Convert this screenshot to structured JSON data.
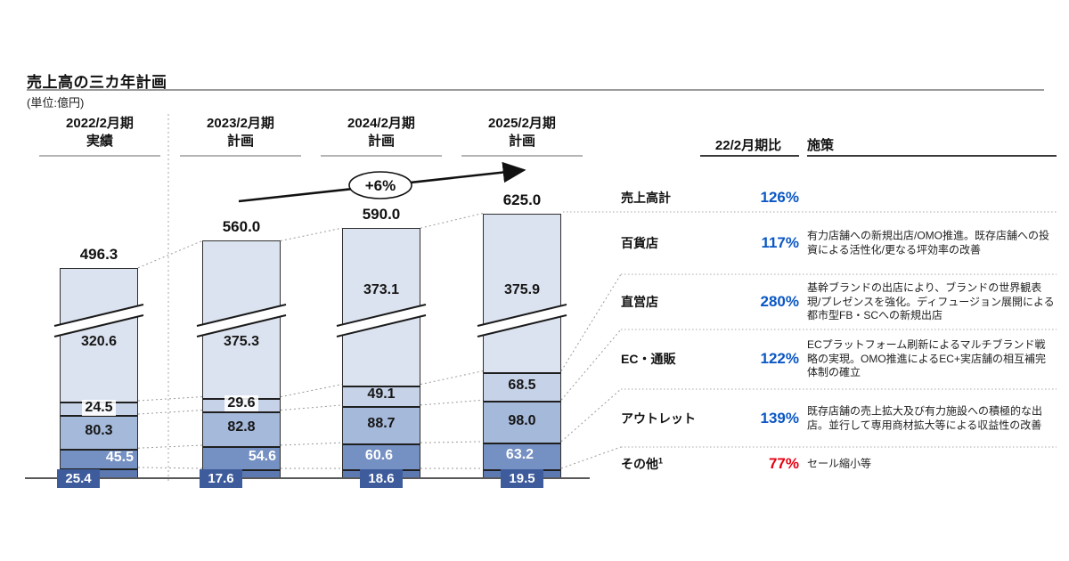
{
  "page": {
    "title": "売上高の三カ年計画",
    "unit_note": "(単位:億円)"
  },
  "chart_data": {
    "type": "bar",
    "stacked": true,
    "unit": "億円",
    "title": "売上高の三カ年計画",
    "categories": [
      "2022/2月期 実績",
      "2023/2月期 計画",
      "2024/2月期 計画",
      "2025/2月期 計画"
    ],
    "category_headers": [
      {
        "line1": "2022/2月期",
        "line2": "実績"
      },
      {
        "line1": "2023/2月期",
        "line2": "計画"
      },
      {
        "line1": "2024/2月期",
        "line2": "計画"
      },
      {
        "line1": "2025/2月期",
        "line2": "計画"
      }
    ],
    "totals": [
      496.3,
      560.0,
      590.0,
      625.0
    ],
    "series": [
      {
        "name": "百貨店",
        "color": "#dce3f0",
        "values": [
          320.6,
          375.3,
          373.1,
          375.9
        ]
      },
      {
        "name": "直営店",
        "color": "#c6d2e8",
        "values": [
          24.5,
          29.6,
          49.1,
          68.5
        ]
      },
      {
        "name": "EC・通販",
        "color": "#a5b9da",
        "values": [
          80.3,
          82.8,
          88.7,
          98.0
        ]
      },
      {
        "name": "アウトレット",
        "color": "#7590c2",
        "values": [
          45.5,
          54.6,
          60.6,
          63.2
        ]
      },
      {
        "name": "その他",
        "color": "#5c79b2",
        "values": [
          25.4,
          17.6,
          18.6,
          19.5
        ]
      }
    ],
    "growth_annotation": "+6%",
    "axis_break": true,
    "legend_position": "none",
    "xlabel": "",
    "ylabel": ""
  },
  "table": {
    "ratio_header": "22/2月期比",
    "measures_header": "施策",
    "rows": [
      {
        "label": "売上高計",
        "sup": "",
        "ratio": "126%",
        "ratio_color": "#0b57c4",
        "measure": ""
      },
      {
        "label": "百貨店",
        "sup": "",
        "ratio": "117%",
        "ratio_color": "#0b57c4",
        "measure": "有力店舗への新規出店/OMO推進。既存店舗への投資による活性化/更なる坪効率の改善"
      },
      {
        "label": "直営店",
        "sup": "",
        "ratio": "280%",
        "ratio_color": "#0b57c4",
        "measure": "基幹ブランドの出店により、ブランドの世界観表現/プレゼンスを強化。ディフュージョン展開による都市型FB・SCへの新規出店"
      },
      {
        "label": "EC・通販",
        "sup": "",
        "ratio": "122%",
        "ratio_color": "#0b57c4",
        "measure": "ECプラットフォーム刷新によるマルチブランド戦略の実現。OMO推進によるEC+実店舗の相互補完体制の確立"
      },
      {
        "label": "アウトレット",
        "sup": "",
        "ratio": "139%",
        "ratio_color": "#0b57c4",
        "measure": "既存店舗の売上拡大及び有力施設への積極的な出店。並行して専用商材拡大等による収益性の改善"
      },
      {
        "label": "その他",
        "sup": "1",
        "ratio": "77%",
        "ratio_color": "#e60012",
        "measure": "セール縮小等"
      }
    ]
  },
  "colors": {
    "ratio_blue": "#0b57c4",
    "ratio_red": "#e60012",
    "badge_bg": "#3e5c9c"
  }
}
